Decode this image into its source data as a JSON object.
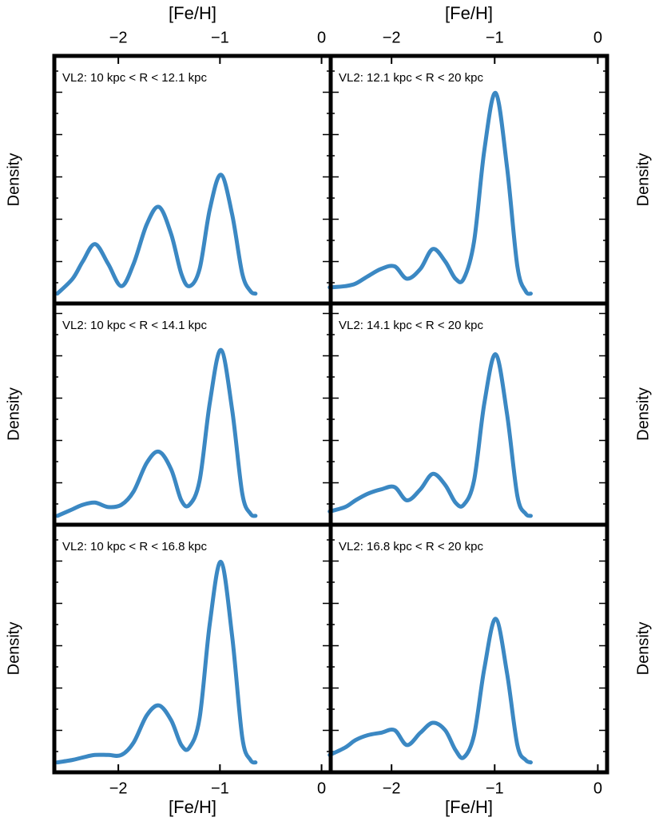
{
  "chart_data": [
    {
      "type": "line",
      "title": "VL2: 10 kpc < R < 12.1 kpc",
      "xlabel": "[Fe/H]",
      "ylabel": "Density",
      "color": "#3b88c3",
      "x": [
        -2.6,
        -2.45,
        -2.35,
        -2.23,
        -2.1,
        -1.97,
        -1.85,
        -1.72,
        -1.6,
        -1.48,
        -1.38,
        -1.3,
        -1.2,
        -1.1,
        -0.99,
        -0.88,
        -0.78,
        -0.7,
        -0.65
      ],
      "values": [
        0.04,
        0.1,
        0.17,
        0.24,
        0.16,
        0.07,
        0.16,
        0.32,
        0.39,
        0.28,
        0.12,
        0.07,
        0.14,
        0.38,
        0.52,
        0.36,
        0.12,
        0.05,
        0.04
      ],
      "xlim": [
        -2.63,
        0.09
      ],
      "ylim": [
        0,
        1
      ],
      "xticks": [
        {
          "value": -2,
          "label": "−2"
        },
        {
          "value": -1,
          "label": "−1"
        },
        0
      ]
    },
    {
      "type": "line",
      "title": "VL2: 12.1 kpc < R < 20 kpc",
      "xlabel": "[Fe/H]",
      "ylabel": "Density",
      "color": "#3b88c3",
      "x": [
        -2.6,
        -2.45,
        -2.35,
        -2.23,
        -2.1,
        -1.97,
        -1.85,
        -1.72,
        -1.6,
        -1.48,
        -1.38,
        -1.3,
        -1.2,
        -1.1,
        -0.99,
        -0.88,
        -0.78,
        -0.7,
        -0.65
      ],
      "values": [
        0.065,
        0.07,
        0.08,
        0.11,
        0.14,
        0.15,
        0.1,
        0.14,
        0.22,
        0.17,
        0.1,
        0.1,
        0.25,
        0.62,
        0.85,
        0.55,
        0.15,
        0.05,
        0.04
      ],
      "xlim": [
        -2.59,
        0.09
      ],
      "ylim": [
        0,
        1
      ],
      "xticks": [
        {
          "value": -2,
          "label": "−2"
        },
        {
          "value": -1,
          "label": "−1"
        },
        0
      ]
    },
    {
      "type": "line",
      "title": "VL2: 10 kpc < R < 14.1 kpc",
      "ylabel": "Density",
      "color": "#3b88c3",
      "x": [
        -2.6,
        -2.45,
        -2.35,
        -2.23,
        -2.1,
        -1.97,
        -1.85,
        -1.72,
        -1.6,
        -1.48,
        -1.38,
        -1.3,
        -1.2,
        -1.1,
        -0.99,
        -0.88,
        -0.78,
        -0.7,
        -0.65
      ],
      "values": [
        0.04,
        0.07,
        0.09,
        0.1,
        0.08,
        0.09,
        0.15,
        0.28,
        0.33,
        0.25,
        0.11,
        0.09,
        0.2,
        0.55,
        0.79,
        0.52,
        0.14,
        0.05,
        0.04
      ],
      "xlim": [
        -2.63,
        0.09
      ],
      "ylim": [
        0,
        1
      ]
    },
    {
      "type": "line",
      "title": "VL2: 14.1 kpc < R < 20 kpc",
      "ylabel": "Density",
      "color": "#3b88c3",
      "x": [
        -2.6,
        -2.45,
        -2.35,
        -2.23,
        -2.1,
        -1.97,
        -1.85,
        -1.72,
        -1.6,
        -1.48,
        -1.38,
        -1.3,
        -1.2,
        -1.1,
        -0.99,
        -0.88,
        -0.78,
        -0.7,
        -0.65
      ],
      "values": [
        0.06,
        0.08,
        0.11,
        0.14,
        0.16,
        0.17,
        0.11,
        0.16,
        0.23,
        0.18,
        0.1,
        0.09,
        0.2,
        0.55,
        0.77,
        0.5,
        0.13,
        0.05,
        0.04
      ],
      "xlim": [
        -2.59,
        0.09
      ],
      "ylim": [
        0,
        1
      ]
    },
    {
      "type": "line",
      "title": "VL2: 10 kpc < R < 16.8 kpc",
      "xlabel": "[Fe/H]",
      "ylabel": "Density",
      "color": "#3b88c3",
      "x": [
        -2.6,
        -2.45,
        -2.35,
        -2.23,
        -2.1,
        -1.97,
        -1.85,
        -1.72,
        -1.6,
        -1.48,
        -1.38,
        -1.3,
        -1.2,
        -1.1,
        -0.99,
        -0.88,
        -0.78,
        -0.7,
        -0.65
      ],
      "values": [
        0.04,
        0.05,
        0.06,
        0.07,
        0.07,
        0.07,
        0.12,
        0.23,
        0.27,
        0.21,
        0.11,
        0.1,
        0.22,
        0.6,
        0.85,
        0.55,
        0.14,
        0.05,
        0.04
      ],
      "xlim": [
        -2.63,
        0.09
      ],
      "ylim": [
        0,
        1
      ],
      "xticks": [
        {
          "value": -2,
          "label": "−2"
        },
        {
          "value": -1,
          "label": "−1"
        },
        0
      ]
    },
    {
      "type": "line",
      "title": "VL2: 16.8 kpc < R < 20 kpc",
      "xlabel": "[Fe/H]",
      "ylabel": "Density",
      "color": "#3b88c3",
      "x": [
        -2.6,
        -2.45,
        -2.35,
        -2.23,
        -2.1,
        -1.97,
        -1.85,
        -1.72,
        -1.6,
        -1.48,
        -1.38,
        -1.3,
        -1.2,
        -1.1,
        -0.99,
        -0.88,
        -0.78,
        -0.7,
        -0.65
      ],
      "values": [
        0.07,
        0.1,
        0.13,
        0.15,
        0.16,
        0.17,
        0.11,
        0.16,
        0.2,
        0.17,
        0.09,
        0.06,
        0.15,
        0.42,
        0.62,
        0.4,
        0.11,
        0.05,
        0.04
      ],
      "xlim": [
        -2.59,
        0.09
      ],
      "ylim": [
        0,
        1
      ],
      "xticks": [
        {
          "value": -2,
          "label": "−2"
        },
        {
          "value": -1,
          "label": "−1"
        },
        0
      ]
    }
  ]
}
